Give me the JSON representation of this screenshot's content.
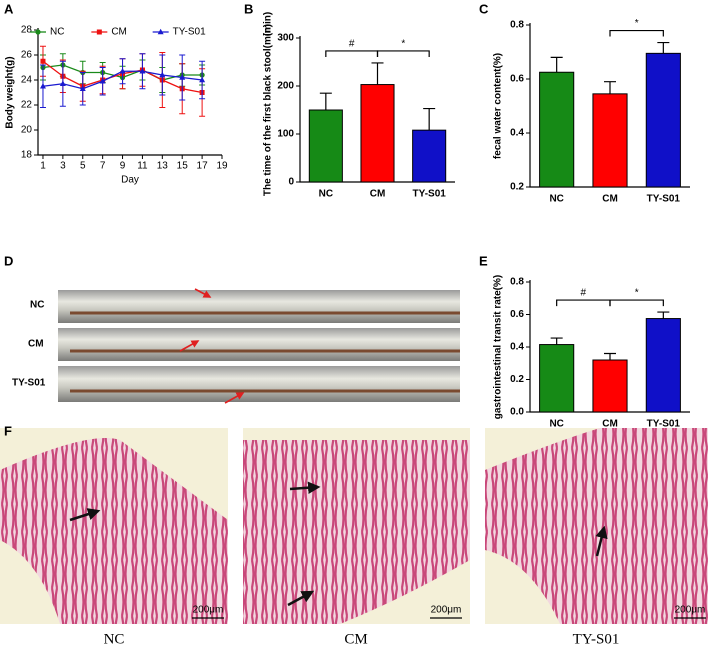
{
  "chart_data": [
    {
      "panel": "A",
      "type": "line",
      "xlabel": "Day",
      "ylabel": "Body weight(g)",
      "x": [
        1,
        3,
        5,
        7,
        9,
        11,
        13,
        15,
        17
      ],
      "xlim": [
        0.5,
        19
      ],
      "xticks": [
        1,
        3,
        5,
        7,
        9,
        11,
        13,
        15,
        17,
        19
      ],
      "ylim": [
        18,
        28
      ],
      "yticks": [
        18,
        20,
        22,
        24,
        26,
        28
      ],
      "legend": "top",
      "series": [
        {
          "name": "NC",
          "color": "#1a8a1a",
          "marker": "circle",
          "values": [
            25.0,
            25.2,
            24.6,
            24.6,
            24.2,
            24.8,
            24.0,
            24.4,
            24.4
          ],
          "errors": [
            1.0,
            0.9,
            0.9,
            0.8,
            0.9,
            0.8,
            1.0,
            0.9,
            0.8
          ]
        },
        {
          "name": "CM",
          "color": "#ee1111",
          "marker": "square",
          "values": [
            25.5,
            24.3,
            23.5,
            24.0,
            24.5,
            24.8,
            24.0,
            23.3,
            23.0
          ],
          "errors": [
            1.2,
            1.3,
            1.2,
            1.1,
            1.2,
            1.3,
            2.2,
            2.0,
            1.9
          ]
        },
        {
          "name": "TY-S01",
          "color": "#1a1ad0",
          "marker": "triangle",
          "values": [
            23.5,
            23.7,
            23.3,
            23.9,
            24.7,
            24.7,
            24.4,
            24.2,
            24.0
          ],
          "errors": [
            1.7,
            1.8,
            1.3,
            1.1,
            1.0,
            1.4,
            1.6,
            1.8,
            1.5
          ]
        }
      ]
    },
    {
      "panel": "B",
      "type": "bar",
      "ylabel": "The time of the first black stool(min)",
      "unit": "(min)",
      "categories": [
        "NC",
        "CM",
        "TY-S01"
      ],
      "values": [
        150,
        203,
        108
      ],
      "errors": [
        35,
        45,
        45
      ],
      "colors": [
        "#168a16",
        "#ff0000",
        "#1010c8"
      ],
      "ylim": [
        0,
        300
      ],
      "yticks": [
        0,
        100,
        200,
        300
      ],
      "significance": [
        {
          "between": [
            "NC",
            "CM"
          ],
          "label": "#"
        },
        {
          "between": [
            "CM",
            "TY-S01"
          ],
          "label": "*"
        }
      ]
    },
    {
      "panel": "C",
      "type": "bar",
      "ylabel": "fecal water content(%)",
      "categories": [
        "NC",
        "CM",
        "TY-S01"
      ],
      "values": [
        0.625,
        0.545,
        0.695
      ],
      "errors": [
        0.055,
        0.045,
        0.04
      ],
      "colors": [
        "#168a16",
        "#ff0000",
        "#1010c8"
      ],
      "ylim": [
        0.2,
        0.8
      ],
      "yticks": [
        0.2,
        0.4,
        0.6,
        0.8
      ],
      "significance": [
        {
          "between": [
            "CM",
            "TY-S01"
          ],
          "label": "*"
        }
      ]
    },
    {
      "panel": "E",
      "type": "bar",
      "ylabel": "gastrointestinal transit rate(%)",
      "categories": [
        "NC",
        "CM",
        "TY-S01"
      ],
      "values": [
        0.415,
        0.32,
        0.575
      ],
      "errors": [
        0.04,
        0.04,
        0.04
      ],
      "colors": [
        "#168a16",
        "#ff0000",
        "#1010c8"
      ],
      "ylim": [
        0,
        0.8
      ],
      "yticks": [
        {
          "value": 0,
          "label": "0.0"
        },
        0.2,
        0.4,
        0.6,
        0.8
      ],
      "significance": [
        {
          "between": [
            "NC",
            "CM"
          ],
          "label": "#"
        },
        {
          "between": [
            "CM",
            "TY-S01"
          ],
          "label": "*"
        }
      ]
    }
  ],
  "photo_panels": [
    {
      "panel": "D",
      "labels": [
        "NC",
        "CM",
        "TY-S01"
      ]
    },
    {
      "panel": "F",
      "labels": [
        "NC",
        "CM",
        "TY-S01"
      ],
      "scale_bars": [
        "200μm",
        "200μm",
        "200μm"
      ]
    }
  ]
}
